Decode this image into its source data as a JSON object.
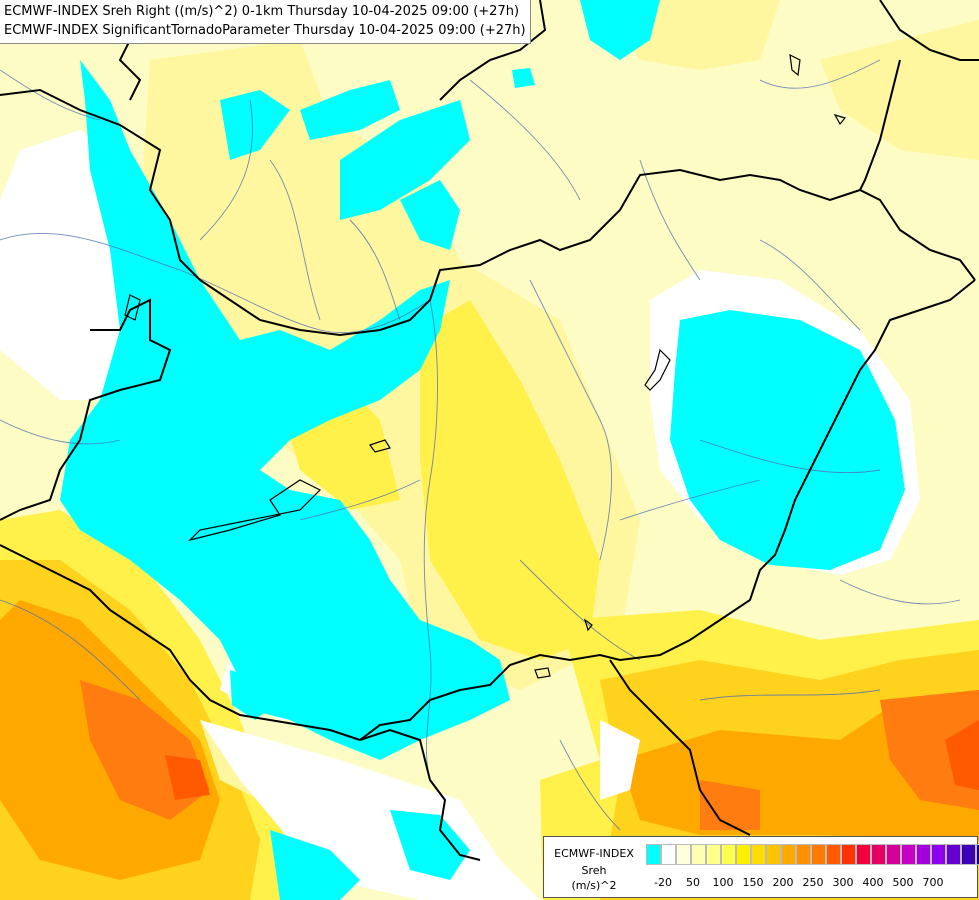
{
  "header": {
    "line1": "ECMWF-INDEX Sreh Right ((m/s)^2) 0-1km Thursday 10-04-2025 09:00 (+27h)",
    "line2": "ECMWF-INDEX SignificantTornadoParameter Thursday 10-04-2025 09:00 (+27h)"
  },
  "legend": {
    "model": "ECMWF-INDEX",
    "param": "Sreh",
    "unit": "(m/s)^2",
    "colors": [
      "#00ffff",
      "#ffffff",
      "#ffffdc",
      "#ffffb4",
      "#ffff8c",
      "#ffff50",
      "#fff000",
      "#ffdc00",
      "#ffc400",
      "#ffaa00",
      "#ff9100",
      "#ff7800",
      "#ff5a00",
      "#ff3200",
      "#f0003c",
      "#e60064",
      "#d20096",
      "#c300c3",
      "#a500dc",
      "#8c00eb",
      "#6400d2",
      "#3c00b4",
      "#1e008c",
      "#0a0064"
    ],
    "ticks": [
      "-20",
      "50",
      "100",
      "150",
      "200",
      "250",
      "300",
      "400",
      "500",
      "700"
    ]
  },
  "colors": {
    "border_line": "#000000",
    "river_line": "#4f6fb0",
    "cyan": "#00ffff",
    "white": "#ffffff",
    "pale_yellow": "#fdfcc4",
    "light_yellow": "#fff6a0",
    "yellow": "#fff04a",
    "gold": "#ffd21e",
    "orange": "#ffa800",
    "dark_orange": "#ff7c10",
    "red_orange": "#ff5a00"
  }
}
